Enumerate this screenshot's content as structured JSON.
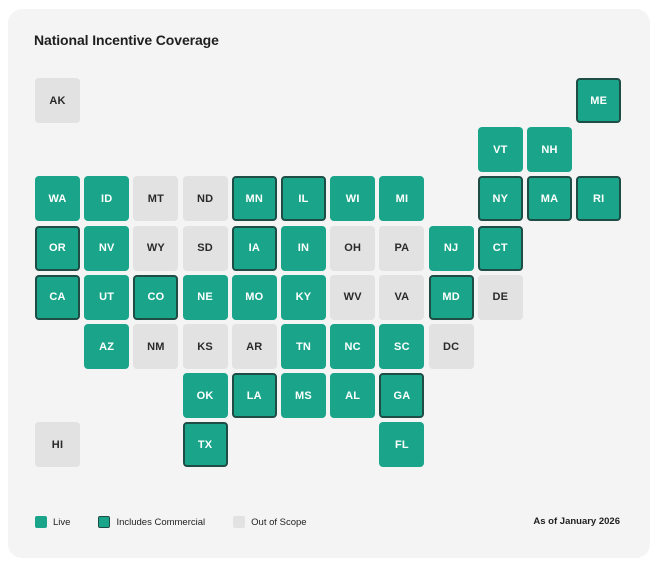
{
  "title": "National Incentive Coverage",
  "legend": {
    "live": "Live",
    "commercial": "Includes Commercial",
    "out": "Out of Scope"
  },
  "as_of": "As of January 2026",
  "colors": {
    "live": "#1aa58a",
    "commercial_border": "#1e4d46",
    "out_of_scope": "#e2e2e2"
  },
  "states": [
    {
      "abbr": "AK",
      "status": "out"
    },
    {
      "abbr": "ME",
      "status": "commercial"
    },
    {
      "abbr": "VT",
      "status": "live"
    },
    {
      "abbr": "NH",
      "status": "live"
    },
    {
      "abbr": "WA",
      "status": "live"
    },
    {
      "abbr": "ID",
      "status": "live"
    },
    {
      "abbr": "MT",
      "status": "out"
    },
    {
      "abbr": "ND",
      "status": "out"
    },
    {
      "abbr": "MN",
      "status": "commercial"
    },
    {
      "abbr": "IL",
      "status": "commercial"
    },
    {
      "abbr": "WI",
      "status": "live"
    },
    {
      "abbr": "MI",
      "status": "live"
    },
    {
      "abbr": "NY",
      "status": "commercial"
    },
    {
      "abbr": "MA",
      "status": "commercial"
    },
    {
      "abbr": "RI",
      "status": "commercial"
    },
    {
      "abbr": "OR",
      "status": "commercial"
    },
    {
      "abbr": "NV",
      "status": "live"
    },
    {
      "abbr": "WY",
      "status": "out"
    },
    {
      "abbr": "SD",
      "status": "out"
    },
    {
      "abbr": "IA",
      "status": "commercial"
    },
    {
      "abbr": "IN",
      "status": "live"
    },
    {
      "abbr": "OH",
      "status": "out"
    },
    {
      "abbr": "PA",
      "status": "out"
    },
    {
      "abbr": "NJ",
      "status": "live"
    },
    {
      "abbr": "CT",
      "status": "commercial"
    },
    {
      "abbr": "CA",
      "status": "commercial"
    },
    {
      "abbr": "UT",
      "status": "live"
    },
    {
      "abbr": "CO",
      "status": "commercial"
    },
    {
      "abbr": "NE",
      "status": "live"
    },
    {
      "abbr": "MO",
      "status": "live"
    },
    {
      "abbr": "KY",
      "status": "live"
    },
    {
      "abbr": "WV",
      "status": "out"
    },
    {
      "abbr": "VA",
      "status": "out"
    },
    {
      "abbr": "MD",
      "status": "commercial"
    },
    {
      "abbr": "DE",
      "status": "out"
    },
    {
      "abbr": "AZ",
      "status": "live"
    },
    {
      "abbr": "NM",
      "status": "out"
    },
    {
      "abbr": "KS",
      "status": "out"
    },
    {
      "abbr": "AR",
      "status": "out"
    },
    {
      "abbr": "TN",
      "status": "live"
    },
    {
      "abbr": "NC",
      "status": "live"
    },
    {
      "abbr": "SC",
      "status": "live"
    },
    {
      "abbr": "DC",
      "status": "out"
    },
    {
      "abbr": "OK",
      "status": "live"
    },
    {
      "abbr": "LA",
      "status": "commercial"
    },
    {
      "abbr": "MS",
      "status": "live"
    },
    {
      "abbr": "AL",
      "status": "live"
    },
    {
      "abbr": "GA",
      "status": "commercial"
    },
    {
      "abbr": "HI",
      "status": "out"
    },
    {
      "abbr": "TX",
      "status": "commercial"
    },
    {
      "abbr": "FL",
      "status": "live"
    }
  ]
}
